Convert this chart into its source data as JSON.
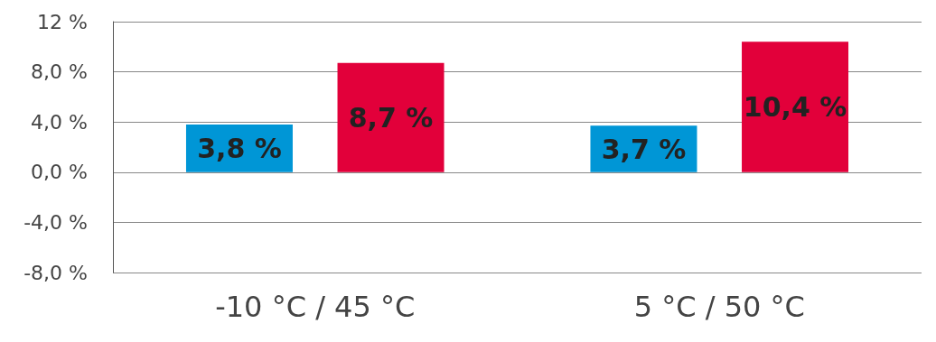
{
  "chart_data": {
    "type": "bar",
    "categories": [
      "-10 °C / 45 °C",
      "5 °C / 50 °C"
    ],
    "series": [
      {
        "color": "#0096d6",
        "values": [
          3.8,
          3.7
        ],
        "value_labels": [
          "3,8 %",
          "3,7 %"
        ]
      },
      {
        "color": "#e2003a",
        "values": [
          8.7,
          10.4
        ],
        "value_labels": [
          "8,7 %",
          "10,4 %"
        ]
      }
    ],
    "ylim": [
      -8,
      12
    ],
    "yticks": [
      {
        "value": -8,
        "label": "-8,0 %"
      },
      {
        "value": -4,
        "label": "-4,0 %"
      },
      {
        "value": 0,
        "label": "0,0 %"
      },
      {
        "value": 4,
        "label": "4,0 %"
      },
      {
        "value": 8,
        "label": "8,0 %"
      },
      {
        "value": 12,
        "label": "12 %"
      }
    ],
    "grid": "y"
  }
}
